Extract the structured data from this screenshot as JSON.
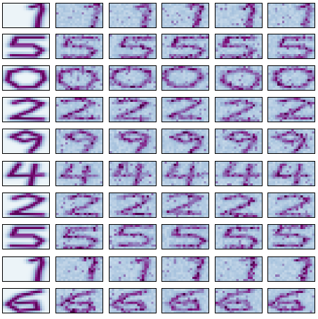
{
  "figure": {
    "rows": 10,
    "cols": 6,
    "digits": [
      "1",
      "5",
      "0",
      "2",
      "9",
      "4",
      "2",
      "5",
      "1",
      "6"
    ],
    "columns": [
      "mean",
      "sample",
      "sample",
      "sample",
      "sample",
      "sample"
    ],
    "colormap": {
      "name": "BuPu",
      "low": "#f7fcfd",
      "mid_low": "#bfd3e6",
      "mid": "#9ebcda",
      "mid_high": "#8c6bb1",
      "high": "#810f7c",
      "darkest": "#4d004b"
    },
    "border_color": "#000000",
    "background": "#ffffff"
  }
}
